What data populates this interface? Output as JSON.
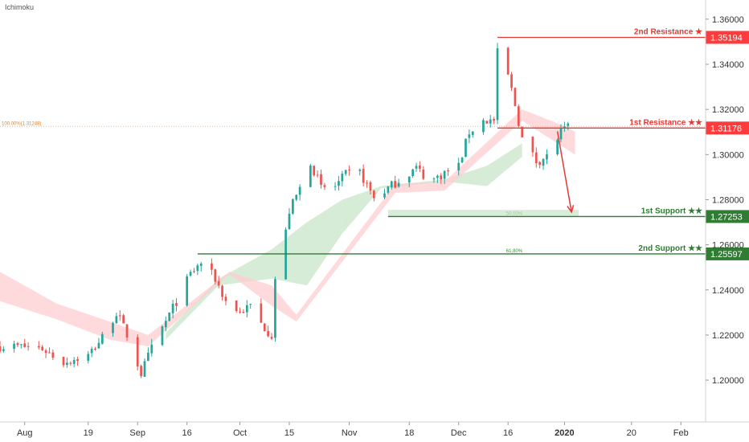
{
  "indicator_label": "Ichimoku",
  "colors": {
    "bull": "#26a69a",
    "bear": "#ef5350",
    "resistance": "#e53935",
    "support": "#2e7d32",
    "resistance_badge": "#ff3b3b",
    "support_badge": "#2e7d32",
    "fib_dotted": "#f4b183",
    "fib_support_dotted": "#81c784",
    "cloud_green": "#c8e6c9",
    "cloud_red": "#ffcdd2",
    "arrow": "#e53935"
  },
  "chart_data": {
    "type": "candlestick",
    "title": "",
    "y_axis": {
      "ticks": [
        1.2,
        1.22,
        1.24,
        1.26,
        1.28,
        1.3,
        1.32,
        1.34,
        1.36
      ],
      "tick_labels": [
        "1.20000",
        "1.22000",
        "1.24000",
        "1.26000",
        "1.28000",
        "1.30000",
        "1.32000",
        "1.34000",
        "1.36000"
      ],
      "range": [
        1.1815,
        1.3685
      ]
    },
    "x_axis": {
      "labels": [
        "Aug",
        "19",
        "Sep",
        "16",
        "Oct",
        "15",
        "Nov",
        "18",
        "Dec",
        "16",
        "2020",
        "20",
        "Feb"
      ],
      "label_dates": [
        "2019-08-01",
        "2019-08-19",
        "2019-09-02",
        "2019-09-16",
        "2019-10-01",
        "2019-10-15",
        "2019-11-01",
        "2019-11-18",
        "2019-12-02",
        "2019-12-16",
        "2020-01-01",
        "2020-01-20",
        "2020-02-03"
      ],
      "range": [
        "2019-07-25",
        "2020-02-10"
      ]
    },
    "price_path": [
      [
        "2019-07-25",
        1.215
      ],
      [
        "2019-07-31",
        1.215
      ],
      [
        "2019-08-06",
        1.214
      ],
      [
        "2019-08-12",
        1.208
      ],
      [
        "2019-08-19",
        1.211
      ],
      [
        "2019-08-23",
        1.219
      ],
      [
        "2019-08-27",
        1.23
      ],
      [
        "2019-08-30",
        1.22
      ],
      [
        "2019-09-03",
        1.203
      ],
      [
        "2019-09-06",
        1.214
      ],
      [
        "2019-09-09",
        1.223
      ],
      [
        "2019-09-12",
        1.232
      ],
      [
        "2019-09-17",
        1.247
      ],
      [
        "2019-09-20",
        1.252
      ],
      [
        "2019-09-24",
        1.245
      ],
      [
        "2019-09-27",
        1.235
      ],
      [
        "2019-10-01",
        1.23
      ],
      [
        "2019-10-04",
        1.233
      ],
      [
        "2019-10-07",
        1.225
      ],
      [
        "2019-10-10",
        1.22
      ],
      [
        "2019-10-11",
        1.245
      ],
      [
        "2019-10-13",
        1.256
      ],
      [
        "2019-10-15",
        1.275
      ],
      [
        "2019-10-18",
        1.285
      ],
      [
        "2019-10-21",
        1.297
      ],
      [
        "2019-10-24",
        1.285
      ],
      [
        "2019-10-28",
        1.286
      ],
      [
        "2019-10-31",
        1.291
      ],
      [
        "2019-11-04",
        1.292
      ],
      [
        "2019-11-08",
        1.281
      ],
      [
        "2019-11-12",
        1.285
      ],
      [
        "2019-11-16",
        1.29
      ],
      [
        "2019-11-20",
        1.294
      ],
      [
        "2019-11-24",
        1.288
      ],
      [
        "2019-11-28",
        1.292
      ],
      [
        "2019-12-02",
        1.295
      ],
      [
        "2019-12-05",
        1.31
      ],
      [
        "2019-12-09",
        1.315
      ],
      [
        "2019-12-12",
        1.315
      ],
      [
        "2019-12-13",
        1.345
      ],
      [
        "2019-12-16",
        1.335
      ],
      [
        "2019-12-18",
        1.322
      ],
      [
        "2019-12-20",
        1.307
      ],
      [
        "2019-12-24",
        1.297
      ],
      [
        "2019-12-27",
        1.299
      ],
      [
        "2019-12-31",
        1.31
      ],
      [
        "2020-01-02",
        1.3117
      ]
    ],
    "volatility": 0.0028,
    "cloud_green_path": [
      [
        "2019-09-10",
        1.218,
        1.221
      ],
      [
        "2019-09-25",
        1.242,
        1.245
      ],
      [
        "2019-10-10",
        1.245,
        1.258
      ],
      [
        "2019-10-20",
        1.242,
        1.27
      ],
      [
        "2019-10-30",
        1.265,
        1.28
      ],
      [
        "2019-11-10",
        1.285,
        1.286
      ],
      [
        "2019-11-28",
        1.288,
        1.289
      ],
      [
        "2019-12-10",
        1.286,
        1.295
      ],
      [
        "2019-12-20",
        1.299,
        1.305
      ]
    ],
    "cloud_red_path": [
      [
        "2019-07-25",
        1.235,
        1.248
      ],
      [
        "2019-08-10",
        1.227,
        1.234
      ],
      [
        "2019-08-25",
        1.218,
        1.226
      ],
      [
        "2019-09-05",
        1.215,
        1.22
      ],
      [
        "2019-09-28",
        1.247,
        1.248
      ],
      [
        "2019-10-10",
        1.233,
        1.242
      ],
      [
        "2019-10-17",
        1.226,
        1.229
      ],
      [
        "2019-11-14",
        1.283,
        1.287
      ],
      [
        "2019-11-28",
        1.284,
        1.288
      ],
      [
        "2019-12-20",
        1.315,
        1.32
      ],
      [
        "2020-01-02",
        1.302,
        1.312
      ],
      [
        "2020-01-04",
        1.3,
        1.31
      ]
    ],
    "levels": [
      {
        "name": "2nd Resistance",
        "label": "2nd Resistance ★",
        "value": 1.35194,
        "value_label": "1.35194",
        "kind": "resistance",
        "from": "2019-12-13"
      },
      {
        "name": "1st Resistance",
        "label": "1st Resistance ★★",
        "value": 1.31176,
        "value_label": "1.31176",
        "kind": "resistance",
        "from": "2019-12-13"
      },
      {
        "name": "1st Support",
        "label": "1st Support ★★",
        "value": 1.27253,
        "value_label": "1.27253",
        "kind": "support",
        "from": "2019-11-12"
      },
      {
        "name": "2nd Support",
        "label": "2nd Support ★★",
        "value": 1.25597,
        "value_label": "1.25597",
        "kind": "support",
        "from": "2019-09-19"
      }
    ],
    "fib_lines": [
      {
        "label": "100.00%(1.31248)",
        "value": 1.31248,
        "from": "2019-07-25",
        "to": "2020-01-02"
      },
      {
        "label": "50.00%",
        "value": 1.27253,
        "from": "2019-12-15",
        "to": "2020-01-04"
      },
      {
        "label": "61.80%",
        "value": 1.25597,
        "from": "2019-12-15",
        "to": "2020-01-04"
      }
    ],
    "support_zone": {
      "low": 1.27253,
      "high": 1.2755,
      "from": "2019-11-12",
      "to": "2020-01-05"
    },
    "arrow": {
      "from": [
        "2019-12-30",
        1.3103
      ],
      "to": [
        "2020-01-03",
        1.2745
      ]
    }
  }
}
